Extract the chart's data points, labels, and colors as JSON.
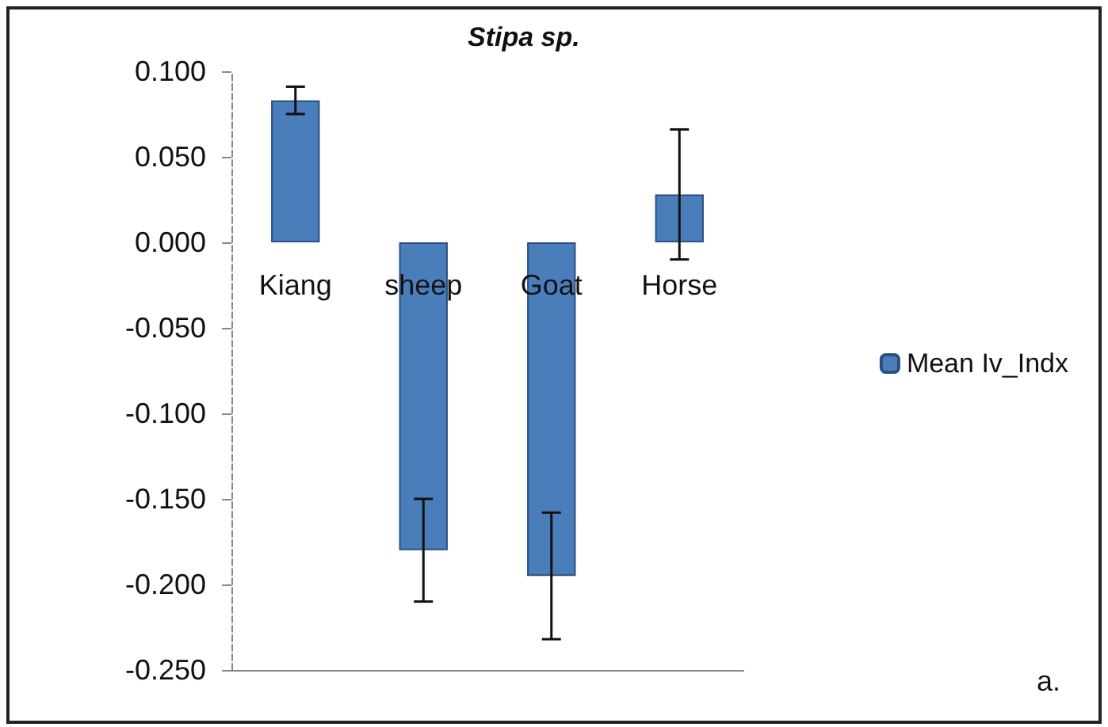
{
  "chart_data": {
    "type": "bar",
    "title": "Stipa sp.",
    "categories": [
      "Kiang",
      "sheep",
      "Goat",
      "Horse"
    ],
    "series": [
      {
        "name": "Mean Iv_Indx",
        "color": "#4a7ebb",
        "values": [
          0.083,
          -0.18,
          -0.195,
          0.028
        ],
        "errors": [
          0.008,
          0.03,
          0.037,
          0.038
        ]
      }
    ],
    "ylim": [
      -0.25,
      0.1
    ],
    "yticks": [
      {
        "value": 0.1,
        "label": "0.100"
      },
      {
        "value": 0.05,
        "label": "0.050"
      },
      {
        "value": 0,
        "label": "0.000"
      },
      {
        "value": -0.05,
        "label": "-0.050"
      },
      {
        "value": -0.1,
        "label": "-0.100"
      },
      {
        "value": -0.15,
        "label": "-0.150"
      },
      {
        "value": -0.2,
        "label": "-0.200"
      },
      {
        "value": -0.25,
        "label": "-0.250"
      }
    ],
    "legend": "right",
    "annotations": [
      "a."
    ]
  }
}
